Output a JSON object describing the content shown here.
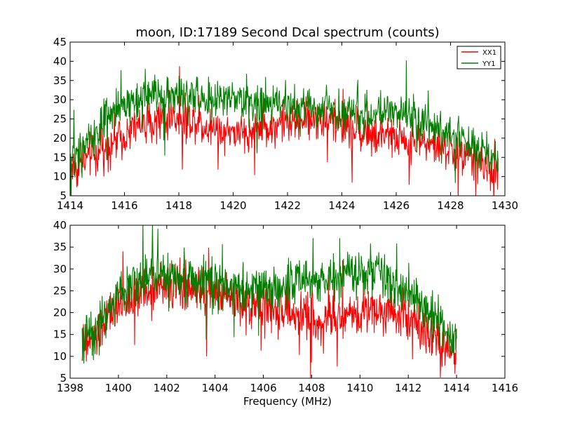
{
  "title": "moon, ID:17189 Second Dcal spectrum (counts)",
  "colors": {
    "XX1": "#ff0000",
    "YY1": "#007f00",
    "axes": "#000000",
    "background": "#ffffff"
  },
  "chart_data": [
    {
      "type": "line",
      "title": "moon, ID:17189 Second Dcal spectrum (counts)",
      "xlabel": "",
      "ylabel": "",
      "xlim": [
        1414,
        1430
      ],
      "ylim": [
        5,
        45
      ],
      "xticks": [
        "1414",
        "1416",
        "1418",
        "1420",
        "1422",
        "1424",
        "1426",
        "1428",
        "1430"
      ],
      "yticks": [
        "5",
        "10",
        "15",
        "20",
        "25",
        "30",
        "35",
        "40",
        "45"
      ],
      "grid": false,
      "legend": {
        "placement": "top-right",
        "entries": [
          "XX1",
          "YY1"
        ]
      },
      "series": [
        {
          "name": "XX1",
          "color": "#ff0000",
          "x": [
            1414.0,
            1414.25,
            1414.5,
            1414.75,
            1415.0,
            1415.25,
            1415.5,
            1415.75,
            1416.0,
            1416.25,
            1416.5,
            1416.75,
            1417.0,
            1417.25,
            1417.5,
            1417.75,
            1418.0,
            1418.25,
            1418.5,
            1418.75,
            1419.0,
            1419.25,
            1419.5,
            1419.75,
            1420.0,
            1420.25,
            1420.5,
            1420.75,
            1421.0,
            1421.25,
            1421.5,
            1421.75,
            1422.0,
            1422.25,
            1422.5,
            1422.75,
            1423.0,
            1423.25,
            1423.5,
            1423.75,
            1424.0,
            1424.25,
            1424.5,
            1424.75,
            1425.0,
            1425.25,
            1425.5,
            1425.75,
            1426.0,
            1426.25,
            1426.5,
            1426.75,
            1427.0,
            1427.25,
            1427.5,
            1427.75,
            1428.0,
            1428.25,
            1428.5,
            1428.75,
            1429.0,
            1429.25,
            1429.5,
            1429.75
          ],
          "values": [
            13,
            12,
            14,
            15,
            16,
            17,
            19,
            20,
            21,
            22,
            23,
            24,
            24,
            25,
            25,
            26,
            25,
            24,
            25,
            24,
            23,
            23,
            22,
            22,
            22,
            21,
            21,
            22,
            22,
            23,
            23,
            24,
            24,
            24,
            25,
            25,
            25,
            25,
            25,
            24,
            24,
            23,
            22,
            22,
            21,
            20,
            20,
            20,
            20,
            20,
            19,
            19,
            19,
            18,
            18,
            17,
            17,
            16,
            15,
            15,
            14,
            13,
            12,
            12
          ]
        },
        {
          "name": "YY1",
          "color": "#007f00",
          "x": [
            1414.0,
            1414.25,
            1414.5,
            1414.75,
            1415.0,
            1415.25,
            1415.5,
            1415.75,
            1416.0,
            1416.25,
            1416.5,
            1416.75,
            1417.0,
            1417.25,
            1417.5,
            1417.75,
            1418.0,
            1418.25,
            1418.5,
            1418.75,
            1419.0,
            1419.25,
            1419.5,
            1419.75,
            1420.0,
            1420.25,
            1420.5,
            1420.75,
            1421.0,
            1421.25,
            1421.5,
            1421.75,
            1422.0,
            1422.25,
            1422.5,
            1422.75,
            1423.0,
            1423.25,
            1423.5,
            1423.75,
            1424.0,
            1424.25,
            1424.5,
            1424.75,
            1425.0,
            1425.25,
            1425.5,
            1425.75,
            1426.0,
            1426.25,
            1426.5,
            1426.75,
            1427.0,
            1427.25,
            1427.5,
            1427.75,
            1428.0,
            1428.25,
            1428.5,
            1428.75,
            1429.0,
            1429.25,
            1429.5,
            1429.75
          ],
          "values": [
            15,
            16,
            18,
            20,
            22,
            24,
            26,
            27,
            29,
            30,
            31,
            31,
            32,
            32,
            32,
            31,
            31,
            30,
            31,
            31,
            30,
            30,
            30,
            30,
            30,
            29,
            29,
            29,
            29,
            29,
            29,
            29,
            29,
            28,
            28,
            28,
            28,
            28,
            28,
            27,
            27,
            27,
            27,
            26,
            26,
            26,
            26,
            27,
            27,
            26,
            26,
            25,
            25,
            24,
            23,
            22,
            21,
            20,
            19,
            18,
            17,
            15,
            14,
            13
          ]
        }
      ]
    },
    {
      "type": "line",
      "title": "",
      "xlabel": "Frequency (MHz)",
      "ylabel": "",
      "xlim": [
        1398,
        1416
      ],
      "ylim": [
        5,
        40
      ],
      "xticks": [
        "1398",
        "1400",
        "1402",
        "1404",
        "1406",
        "1408",
        "1410",
        "1412",
        "1414",
        "1416"
      ],
      "yticks": [
        "5",
        "10",
        "15",
        "20",
        "25",
        "30",
        "35",
        "40"
      ],
      "grid": false,
      "legend": null,
      "series": [
        {
          "name": "XX1",
          "color": "#ff0000",
          "x": [
            1398.5,
            1398.75,
            1399.0,
            1399.25,
            1399.5,
            1399.75,
            1400.0,
            1400.25,
            1400.5,
            1400.75,
            1401.0,
            1401.25,
            1401.5,
            1401.75,
            1402.0,
            1402.25,
            1402.5,
            1402.75,
            1403.0,
            1403.25,
            1403.5,
            1403.75,
            1404.0,
            1404.25,
            1404.5,
            1404.75,
            1405.0,
            1405.25,
            1405.5,
            1405.75,
            1406.0,
            1406.25,
            1406.5,
            1406.75,
            1407.0,
            1407.25,
            1407.5,
            1407.75,
            1408.0,
            1408.25,
            1408.5,
            1408.75,
            1409.0,
            1409.25,
            1409.5,
            1409.75,
            1410.0,
            1410.25,
            1410.5,
            1410.75,
            1411.0,
            1411.25,
            1411.5,
            1411.75,
            1412.0,
            1412.25,
            1412.5,
            1412.75,
            1413.0,
            1413.25,
            1413.5,
            1413.75,
            1414.0
          ],
          "values": [
            12,
            13,
            14,
            16,
            18,
            20,
            21,
            22,
            23,
            24,
            25,
            25,
            26,
            26,
            26,
            26,
            26,
            25,
            25,
            25,
            24,
            24,
            24,
            24,
            24,
            23,
            23,
            22,
            22,
            22,
            21,
            21,
            20,
            20,
            20,
            19,
            19,
            19,
            19,
            18,
            18,
            19,
            19,
            19,
            20,
            20,
            20,
            21,
            21,
            21,
            21,
            21,
            20,
            20,
            19,
            18,
            17,
            16,
            15,
            14,
            13,
            12,
            12
          ]
        },
        {
          "name": "YY1",
          "color": "#007f00",
          "x": [
            1398.5,
            1398.75,
            1399.0,
            1399.25,
            1399.5,
            1399.75,
            1400.0,
            1400.25,
            1400.5,
            1400.75,
            1401.0,
            1401.25,
            1401.5,
            1401.75,
            1402.0,
            1402.25,
            1402.5,
            1402.75,
            1403.0,
            1403.25,
            1403.5,
            1403.75,
            1404.0,
            1404.25,
            1404.5,
            1404.75,
            1405.0,
            1405.25,
            1405.5,
            1405.75,
            1406.0,
            1406.25,
            1406.5,
            1406.75,
            1407.0,
            1407.25,
            1407.5,
            1407.75,
            1408.0,
            1408.25,
            1408.5,
            1408.75,
            1409.0,
            1409.25,
            1409.5,
            1409.75,
            1410.0,
            1410.25,
            1410.5,
            1410.75,
            1411.0,
            1411.25,
            1411.5,
            1411.75,
            1412.0,
            1412.25,
            1412.5,
            1412.75,
            1413.0,
            1413.25,
            1413.5,
            1413.75,
            1414.0
          ],
          "values": [
            14,
            15,
            16,
            18,
            20,
            22,
            24,
            25,
            26,
            27,
            28,
            28,
            29,
            29,
            29,
            29,
            28,
            28,
            28,
            27,
            27,
            27,
            27,
            26,
            26,
            26,
            26,
            25,
            25,
            25,
            25,
            25,
            26,
            26,
            26,
            26,
            27,
            27,
            27,
            27,
            28,
            28,
            28,
            28,
            29,
            29,
            29,
            29,
            29,
            29,
            28,
            28,
            27,
            26,
            25,
            24,
            22,
            21,
            19,
            18,
            16,
            15,
            14
          ]
        }
      ]
    }
  ]
}
